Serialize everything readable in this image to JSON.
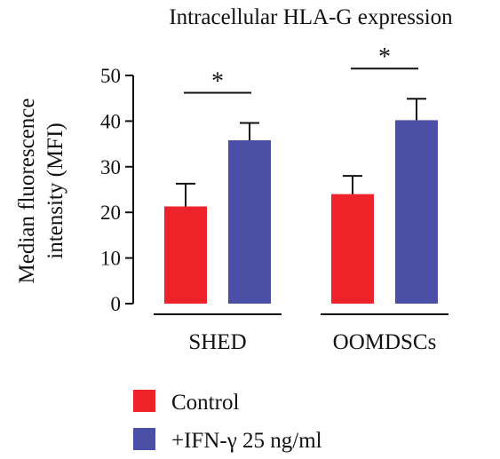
{
  "chart_data": {
    "type": "bar",
    "title": "Intracellular HLA-G expression",
    "ylabel": [
      "Median fluorescence",
      "intensity (MFI)"
    ],
    "xlabel": "",
    "ylim": [
      0,
      50
    ],
    "yticks": [
      "0",
      "10",
      "20",
      "30",
      "40",
      "50"
    ],
    "categories": [
      "SHED",
      "OOMDSCs"
    ],
    "series": [
      {
        "name": "Control",
        "color": "#ee2229",
        "values": [
          21.3,
          24.0
        ],
        "errors": [
          5.0,
          4.0
        ]
      },
      {
        "name": "+IFN-γ 25 ng/ml",
        "color": "#4a4fa5",
        "values": [
          35.8,
          40.2
        ],
        "errors": [
          3.8,
          4.7
        ]
      }
    ],
    "annotations": [
      {
        "group": "SHED",
        "text": "*"
      },
      {
        "group": "OOMDSCs",
        "text": "*"
      }
    ],
    "legend": "bottom-left",
    "grid": false
  }
}
